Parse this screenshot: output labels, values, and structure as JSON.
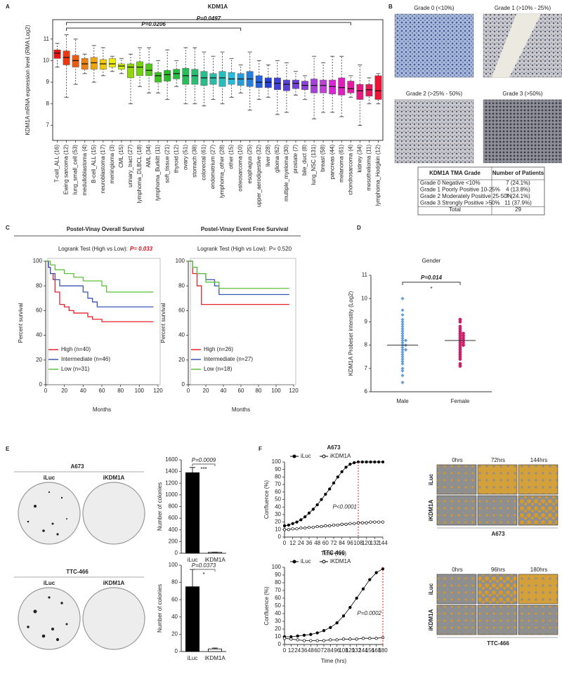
{
  "panel_labels": [
    "A",
    "B",
    "C",
    "D",
    "E",
    "F"
  ],
  "grade_images": [
    "Grade 0 (<10%)",
    "Grade 1 (>10% - 25%)",
    "Grade 2 (>25% - 50%)",
    "Grade 3 (>50%)"
  ],
  "tma_table": {
    "header": [
      "KDM1A TMA Grade",
      "Number of Patients"
    ],
    "rows": [
      [
        "Grade 0 Negative <10%",
        "7 (24.1%)"
      ],
      [
        "Grade 1 Poorly Positive 10-25%",
        "4 (13.8%)"
      ],
      [
        "Grade 2 Moderately Positive 25-50%",
        "7 (24.1%)"
      ],
      [
        "Grade 3 Strongly Positive >50%",
        "11 (37.9%)"
      ],
      [
        "Total",
        "29"
      ]
    ]
  },
  "colony_plates": [
    {
      "title": "A673",
      "conditions": [
        "iLuc",
        "iKDM1A"
      ]
    },
    {
      "title": "TTC-466",
      "conditions": [
        "iLuc",
        "iKDM1A"
      ]
    }
  ],
  "time_lapse": [
    {
      "title": "A673",
      "times": [
        "0hrs",
        "72hrs",
        "144hrs"
      ],
      "conditions": [
        "iLuc",
        "iKDM1A"
      ]
    },
    {
      "title": "TTC-466",
      "times": [
        "0hrs",
        "96hrs",
        "180hrs"
      ],
      "conditions": [
        "iLuc",
        "iKDM1A"
      ]
    }
  ],
  "chart_data": [
    {
      "type": "box",
      "title": "KDM1A",
      "ylabel": "KDM1A mRNA expression level (RMA Log2)",
      "categories": [
        "T-cell_ALL (16)",
        "Ewing sarcoma (12)",
        "lung_small_cell (53)",
        "medulloblastoma (4)",
        "B-cell_ALL (15)",
        "neuroblastoma (17)",
        "meningioma (3)",
        "CML (15)",
        "urinary_tract (27)",
        "lymphoma_DLBCL (18)",
        "AML (34)",
        "lymphoma_Burkitt (11)",
        "soft_tissue (21)",
        "thyroid (12)",
        "ovary (51)",
        "stomach (38)",
        "colorectal (61)",
        "endometrium (27)",
        "lymphoma_other (28)",
        "other (15)",
        "osteosarcoma (10)",
        "esophagus (25)",
        "upper_aerodigestive (32)",
        "liver (28)",
        "glioma (62)",
        "multiple_myeloma (30)",
        "prostate (7)",
        "bile_duct (8)",
        "lung_NSC (131)",
        "breast (58)",
        "pancreas (44)",
        "melanoma (61)",
        "chondrosarcoma (4)",
        "kidney (34)",
        "mesothelioma (11)",
        "lymphoma_Hodgkin (12)"
      ],
      "medians": [
        10.35,
        10.15,
        10.0,
        9.85,
        9.9,
        9.85,
        9.85,
        9.75,
        9.7,
        9.7,
        9.55,
        9.3,
        9.35,
        9.4,
        9.3,
        9.3,
        9.2,
        9.2,
        9.2,
        9.15,
        9.15,
        9.15,
        9.0,
        9.0,
        8.95,
        8.9,
        8.95,
        8.85,
        8.85,
        8.85,
        8.8,
        8.75,
        8.7,
        8.6,
        8.65,
        8.6
      ],
      "q1": [
        10.1,
        9.8,
        9.7,
        9.6,
        9.6,
        9.6,
        9.7,
        9.6,
        9.2,
        9.3,
        9.3,
        9.0,
        9.05,
        9.15,
        8.9,
        8.9,
        8.85,
        8.9,
        8.8,
        8.9,
        8.85,
        8.8,
        8.75,
        8.75,
        8.65,
        8.6,
        8.7,
        8.65,
        8.5,
        8.5,
        8.45,
        8.4,
        8.5,
        8.2,
        8.35,
        8.2
      ],
      "q3": [
        10.5,
        10.45,
        10.25,
        10.1,
        10.15,
        10.05,
        10.1,
        9.85,
        9.85,
        9.95,
        9.85,
        9.45,
        9.55,
        9.6,
        9.65,
        9.6,
        9.5,
        9.4,
        9.5,
        9.45,
        9.4,
        9.5,
        9.3,
        9.2,
        9.2,
        9.1,
        9.1,
        9.05,
        9.15,
        9.1,
        9.1,
        9.2,
        9.05,
        8.9,
        8.9,
        9.3
      ],
      "whisker_low": [
        9.7,
        8.3,
        8.9,
        9.4,
        9.0,
        9.3,
        9.5,
        9.4,
        8.0,
        8.8,
        8.5,
        8.5,
        8.2,
        8.8,
        8.0,
        8.0,
        7.9,
        8.2,
        8.0,
        8.3,
        8.5,
        7.7,
        8.2,
        8.3,
        7.5,
        7.6,
        8.4,
        8.2,
        7.3,
        7.6,
        7.6,
        7.4,
        8.3,
        7.0,
        8.0,
        8.0
      ],
      "whisker_high": [
        10.8,
        11.2,
        11.0,
        10.3,
        10.7,
        10.6,
        10.2,
        10.1,
        10.3,
        10.6,
        10.6,
        10.0,
        10.5,
        10.0,
        10.6,
        10.6,
        10.4,
        10.2,
        10.4,
        10.1,
        9.8,
        10.4,
        10.0,
        9.8,
        10.0,
        9.9,
        9.5,
        9.3,
        10.2,
        9.9,
        10.2,
        10.2,
        9.3,
        9.8,
        9.2,
        9.4
      ],
      "colors": [
        "hsl(0,85%,50%)",
        "hsl(10,85%,50%)",
        "hsl(20,85%,50%)",
        "hsl(30,85%,50%)",
        "hsl(40,85%,50%)",
        "hsl(50,85%,50%)",
        "hsl(60,85%,50%)",
        "hsl(70,85%,50%)",
        "hsl(80,85%,45%)",
        "hsl(90,85%,45%)",
        "hsl(100,75%,45%)",
        "hsl(110,70%,45%)",
        "hsl(120,65%,45%)",
        "hsl(130,65%,45%)",
        "hsl(140,65%,45%)",
        "hsl(150,65%,45%)",
        "hsl(160,65%,45%)",
        "hsl(170,65%,45%)",
        "hsl(180,65%,45%)",
        "hsl(190,70%,50%)",
        "hsl(200,70%,50%)",
        "hsl(210,70%,50%)",
        "hsl(220,70%,50%)",
        "hsl(230,70%,50%)",
        "hsl(240,65%,55%)",
        "hsl(250,65%,55%)",
        "hsl(260,65%,55%)",
        "hsl(270,65%,55%)",
        "hsl(280,65%,55%)",
        "hsl(290,65%,55%)",
        "hsl(300,70%,50%)",
        "hsl(310,75%,50%)",
        "hsl(320,80%,50%)",
        "hsl(330,80%,50%)",
        "hsl(340,80%,50%)",
        "hsl(350,85%,50%)"
      ],
      "highlight_label_color": [
        "#222",
        "#d0141e",
        "#222",
        "#222",
        "#222",
        "#222",
        "#222",
        "#222",
        "#222",
        "#222",
        "#222",
        "#222",
        "#222",
        "#222",
        "#222",
        "#222",
        "#222",
        "#222",
        "#222",
        "#222",
        "#222",
        "#222",
        "#222",
        "#222",
        "#222",
        "#222",
        "#222",
        "#222",
        "#222",
        "#222",
        "#222",
        "#222",
        "#222",
        "#222",
        "#222",
        "#222"
      ],
      "annotations": [
        "P=0.0206",
        "P=0.0497"
      ],
      "ylim": [
        6.3,
        11.9
      ],
      "yticks": [
        7,
        8,
        9,
        10,
        11
      ]
    },
    {
      "type": "km",
      "title": "Postel-Vinay Overall Survival",
      "subtitle": "Logrank Test (High vs Low):",
      "p_label": "P= 0.033",
      "p_color": "#d0141e",
      "xlabel": "Months",
      "ylabel": "Percent survival",
      "legend": "lower left",
      "series": [
        {
          "name": "High (n=40)",
          "color": "#e8212a",
          "x": [
            0,
            3,
            5,
            8,
            10,
            15,
            20,
            25,
            30,
            40,
            45,
            50,
            60,
            115
          ],
          "values": [
            100,
            95,
            90,
            85,
            75,
            65,
            63,
            60,
            58,
            58,
            55,
            53,
            51,
            51
          ]
        },
        {
          "name": "Intermediate (n=46)",
          "color": "#3a56b4",
          "x": [
            0,
            3,
            5,
            10,
            15,
            30,
            40,
            45,
            50,
            55,
            115
          ],
          "values": [
            100,
            95,
            90,
            85,
            80,
            80,
            75,
            70,
            67,
            63,
            63
          ]
        },
        {
          "name": "Low (n=31)",
          "color": "#5cc23a",
          "x": [
            0,
            5,
            10,
            20,
            30,
            40,
            50,
            60,
            65,
            115
          ],
          "values": [
            100,
            97,
            93,
            90,
            87,
            84,
            84,
            80,
            75,
            75
          ]
        }
      ],
      "xlim": [
        0,
        120
      ],
      "xticks": [
        0,
        20,
        40,
        60,
        80,
        100,
        120
      ],
      "ylim": [
        0,
        100
      ],
      "yticks": [
        0,
        20,
        40,
        60,
        80,
        100
      ]
    },
    {
      "type": "km",
      "title": "Postel-Vinay Event Free Survival",
      "subtitle": "Logrank Test (High vs Low):",
      "p_label": "P= 0.520",
      "p_color": "#222222",
      "xlabel": "Months",
      "ylabel": "Percent survival",
      "legend": "lower left",
      "series": [
        {
          "name": "High (n=26)",
          "color": "#e8212a",
          "x": [
            0,
            5,
            10,
            15,
            115
          ],
          "values": [
            100,
            90,
            80,
            65,
            65
          ]
        },
        {
          "name": "Intermediate (n=27)",
          "color": "#3a56b4",
          "x": [
            0,
            5,
            10,
            20,
            30,
            35,
            115
          ],
          "values": [
            100,
            95,
            90,
            85,
            80,
            73,
            73
          ]
        },
        {
          "name": "Low (n=18)",
          "color": "#5cc23a",
          "x": [
            0,
            5,
            10,
            20,
            35,
            115
          ],
          "values": [
            100,
            95,
            90,
            83,
            78,
            78
          ]
        }
      ],
      "xlim": [
        0,
        120
      ],
      "xticks": [
        0,
        20,
        40,
        60,
        80,
        100,
        120
      ],
      "ylim": [
        0,
        100
      ],
      "yticks": [
        0,
        20,
        40,
        60,
        80,
        100
      ]
    },
    {
      "type": "strip",
      "title": "Gender",
      "ylabel": "KDM1A Probeset intenstity (Log2)",
      "categories": [
        "Male",
        "Female"
      ],
      "colors": [
        "#6a9fd8",
        "#c8206a"
      ],
      "values": [
        [
          10.0,
          9.5,
          9.3,
          9.1,
          9.0,
          8.9,
          8.8,
          8.7,
          8.6,
          8.5,
          8.4,
          8.3,
          8.2,
          8.2,
          8.1,
          8.0,
          8.0,
          7.9,
          7.8,
          7.8,
          7.7,
          7.6,
          7.5,
          7.4,
          7.3,
          7.2,
          7.0,
          6.9,
          6.7,
          6.4
        ],
        [
          9.1,
          9.0,
          8.8,
          8.7,
          8.6,
          8.5,
          8.5,
          8.4,
          8.4,
          8.3,
          8.3,
          8.2,
          8.2,
          8.1,
          8.1,
          8.0,
          8.0,
          7.9,
          7.8,
          7.7,
          7.6,
          7.5,
          7.4,
          7.2,
          7.1
        ]
      ],
      "medians": [
        8.0,
        8.2
      ],
      "annotation": "P=0.014",
      "significance": "*",
      "ylim": [
        6,
        11
      ],
      "yticks": [
        6,
        7,
        8,
        9,
        10,
        11
      ]
    },
    {
      "type": "bar",
      "ylabel": "Number of colonies",
      "categories": [
        "iLuc",
        "iKDM1A"
      ],
      "values": [
        1380,
        15
      ],
      "errors": [
        90,
        5
      ],
      "colors": [
        "#000000",
        "#ffffff"
      ],
      "annotation": "P=0.0009",
      "significance": "***",
      "ylim": [
        0,
        1600
      ],
      "yticks": [
        0,
        200,
        400,
        600,
        800,
        1000,
        1200,
        1400,
        1600
      ]
    },
    {
      "type": "bar",
      "ylabel": "Number of colonies",
      "categories": [
        "iLuc",
        "iKDM1A"
      ],
      "values": [
        75,
        3
      ],
      "errors": [
        20,
        1
      ],
      "colors": [
        "#000000",
        "#ffffff"
      ],
      "annotation": "P=0.0373",
      "significance": "*",
      "ylim": [
        0,
        100
      ],
      "yticks": [
        0,
        20,
        40,
        60,
        80,
        100
      ]
    },
    {
      "type": "line",
      "title": "A673",
      "xlabel": "Time (hrs)",
      "ylabel": "Confluence (%)",
      "annotation": "P<0.0001",
      "vline": 108,
      "x": [
        0,
        6,
        12,
        18,
        24,
        30,
        36,
        42,
        48,
        54,
        60,
        66,
        72,
        78,
        84,
        90,
        96,
        102,
        108,
        114,
        120,
        126,
        132,
        138,
        144
      ],
      "series": [
        {
          "name": "iLuc",
          "color": "#000000",
          "marker": "filled",
          "values": [
            15,
            16,
            18,
            20,
            23,
            27,
            32,
            37,
            43,
            50,
            57,
            64,
            72,
            80,
            87,
            93,
            97,
            99,
            100,
            100,
            100,
            100,
            100,
            100,
            100
          ]
        },
        {
          "name": "iKDM1A",
          "color": "#000000",
          "marker": "open",
          "values": [
            10,
            10,
            11,
            11,
            12,
            12,
            13,
            13,
            14,
            14,
            15,
            15,
            16,
            16,
            17,
            17,
            18,
            18,
            19,
            19,
            19,
            20,
            20,
            20,
            20
          ]
        }
      ],
      "xlim": [
        0,
        144
      ],
      "xticks": [
        0,
        12,
        24,
        36,
        48,
        60,
        72,
        84,
        96,
        108,
        120,
        132,
        144
      ],
      "ylim": [
        0,
        100
      ],
      "yticks": [
        0,
        10,
        20,
        30,
        40,
        50,
        60,
        70,
        80,
        90,
        100
      ]
    },
    {
      "type": "line",
      "title": "TTC-466",
      "xlabel": "Time (hrs)",
      "ylabel": "Confluence (%)",
      "annotation": "P=0.0002",
      "vline": 180,
      "x": [
        0,
        12,
        24,
        36,
        48,
        60,
        72,
        84,
        96,
        108,
        120,
        132,
        144,
        156,
        168,
        180
      ],
      "series": [
        {
          "name": "iLuc",
          "color": "#000000",
          "marker": "filled",
          "values": [
            10,
            10,
            11,
            12,
            13,
            15,
            18,
            22,
            28,
            37,
            48,
            60,
            72,
            84,
            93,
            98
          ]
        },
        {
          "name": "iKDM1A",
          "color": "#000000",
          "marker": "open",
          "values": [
            8,
            7,
            6,
            5,
            5,
            5,
            5,
            6,
            6,
            7,
            7,
            7,
            8,
            8,
            8,
            9
          ]
        }
      ],
      "xlim": [
        0,
        180
      ],
      "xticks": [
        0,
        12,
        24,
        36,
        48,
        60,
        72,
        84,
        96,
        108,
        120,
        132,
        144,
        156,
        168,
        180
      ],
      "ylim": [
        0,
        100
      ],
      "yticks": [
        0,
        10,
        20,
        30,
        40,
        50,
        60,
        70,
        80,
        90,
        100
      ]
    }
  ]
}
